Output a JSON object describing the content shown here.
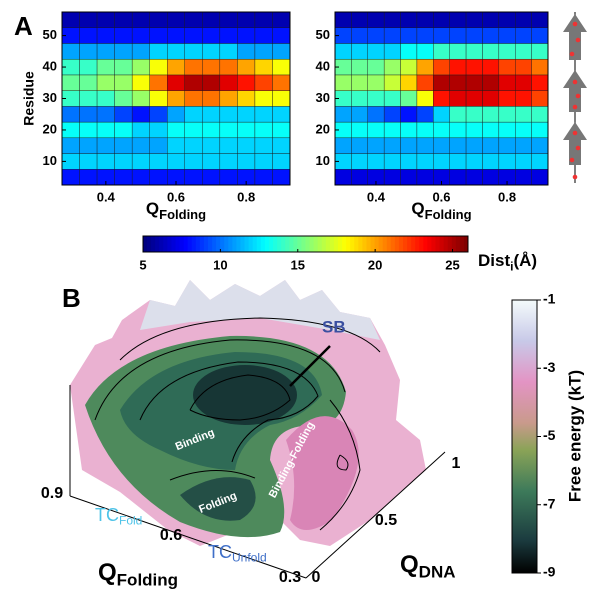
{
  "panel_a": {
    "label": "A",
    "heatmaps": [
      {
        "y_label": "Residue",
        "x_label": "Q",
        "x_label_sub": "Folding",
        "colormap": "jet",
        "xlim": [
          0.275,
          0.925
        ],
        "ylim": [
          2.5,
          57.5
        ],
        "xticks": [
          0.4,
          0.6,
          0.8
        ],
        "yticks": [
          10,
          20,
          30,
          40,
          50
        ],
        "x": [
          0.3,
          0.35,
          0.4,
          0.45,
          0.5,
          0.55,
          0.6,
          0.65,
          0.7,
          0.75,
          0.8,
          0.85,
          0.9
        ],
        "y": [
          5,
          10,
          15,
          20,
          25,
          30,
          35,
          40,
          45,
          50,
          55
        ],
        "values": [
          [
            8,
            8,
            8,
            8,
            8,
            8,
            8,
            8,
            8,
            8,
            8,
            8,
            8
          ],
          [
            12,
            12,
            12,
            12,
            12,
            12,
            12,
            12,
            12,
            12,
            12,
            12,
            12
          ],
          [
            11,
            11,
            11,
            11,
            11,
            11,
            12,
            12,
            12,
            12,
            12,
            12,
            12
          ],
          [
            13,
            13,
            13,
            13,
            12,
            12,
            13,
            13,
            13,
            13,
            13,
            13,
            13
          ],
          [
            10,
            10,
            10,
            9,
            8,
            9,
            11,
            12,
            12,
            12,
            12,
            12,
            12
          ],
          [
            14,
            14,
            14,
            15,
            16,
            18,
            20,
            21,
            21,
            20,
            19,
            18,
            18
          ],
          [
            15,
            15,
            16,
            16,
            18,
            21,
            24,
            25,
            25,
            24,
            23,
            22,
            21
          ],
          [
            14,
            14,
            15,
            15,
            16,
            18,
            20,
            21,
            21,
            21,
            20,
            19,
            18
          ],
          [
            11,
            11,
            11,
            11,
            11,
            12,
            12,
            12,
            12,
            12,
            11,
            11,
            11
          ],
          [
            8,
            8,
            8,
            8,
            8,
            8,
            8,
            8,
            8,
            8,
            8,
            8,
            8
          ],
          [
            6,
            6,
            6,
            6,
            6,
            6,
            6,
            6,
            6,
            6,
            6,
            6,
            6
          ]
        ]
      },
      {
        "x_label": "Q",
        "x_label_sub": "Folding",
        "colormap": "jet",
        "xlim": [
          0.275,
          0.925
        ],
        "ylim": [
          2.5,
          57.5
        ],
        "xticks": [
          0.4,
          0.6,
          0.8
        ],
        "yticks": [
          10,
          20,
          30,
          40,
          50
        ],
        "x": [
          0.3,
          0.35,
          0.4,
          0.45,
          0.5,
          0.55,
          0.6,
          0.65,
          0.7,
          0.75,
          0.8,
          0.85,
          0.9
        ],
        "y": [
          5,
          10,
          15,
          20,
          25,
          30,
          35,
          40,
          45,
          50,
          55
        ],
        "values": [
          [
            7,
            7,
            7,
            7,
            7,
            7,
            7,
            7,
            7,
            7,
            7,
            7,
            7
          ],
          [
            12,
            12,
            12,
            12,
            12,
            12,
            12,
            12,
            12,
            12,
            12,
            12,
            12
          ],
          [
            11,
            11,
            11,
            11,
            11,
            11,
            11,
            11,
            11,
            11,
            11,
            11,
            11
          ],
          [
            13,
            13,
            13,
            13,
            13,
            13,
            13,
            13,
            13,
            13,
            13,
            13,
            13
          ],
          [
            11,
            11,
            10,
            9,
            8,
            9,
            12,
            14,
            14,
            14,
            14,
            14,
            14
          ],
          [
            14,
            14,
            14,
            14,
            15,
            18,
            23,
            24,
            24,
            24,
            23,
            23,
            22
          ],
          [
            16,
            16,
            16,
            17,
            19,
            22,
            25,
            25,
            25,
            25,
            24,
            24,
            23
          ],
          [
            15,
            15,
            15,
            16,
            17,
            20,
            22,
            23,
            23,
            23,
            22,
            22,
            21
          ],
          [
            12,
            12,
            12,
            12,
            13,
            13,
            14,
            14,
            14,
            14,
            14,
            14,
            14
          ],
          [
            9,
            9,
            9,
            9,
            9,
            9,
            9,
            9,
            9,
            9,
            9,
            9,
            9
          ],
          [
            6,
            6,
            6,
            6,
            6,
            6,
            6,
            6,
            6,
            6,
            6,
            6,
            6
          ]
        ]
      }
    ],
    "colorbar": {
      "label": "Dist",
      "label_sub": "i",
      "label_unit": "(Å)",
      "colormap": "jet",
      "lim": [
        5,
        26
      ],
      "ticks": [
        5,
        10,
        15,
        20,
        25
      ]
    }
  },
  "panel_b": {
    "label": "B",
    "annotations": {
      "sb": "SB",
      "binding": "Binding",
      "binding_folding": "Binding-Folding",
      "folding": "Folding"
    },
    "tc_fold": {
      "text": "TC",
      "sub": "Fold"
    },
    "tc_unfold": {
      "text": "TC",
      "sub": "Unfold"
    },
    "x_axis": {
      "label": "Q",
      "sub": "Folding",
      "ticks": [
        0.9,
        0.6,
        0.3
      ]
    },
    "y_axis": {
      "label": "Q",
      "sub": "DNA",
      "ticks": [
        0,
        0.5,
        1
      ]
    },
    "colorbar": {
      "label": "Free energy (kT)",
      "lim": [
        -9,
        -1
      ],
      "ticks": [
        -1,
        -3,
        -5,
        -7,
        -9
      ]
    }
  }
}
